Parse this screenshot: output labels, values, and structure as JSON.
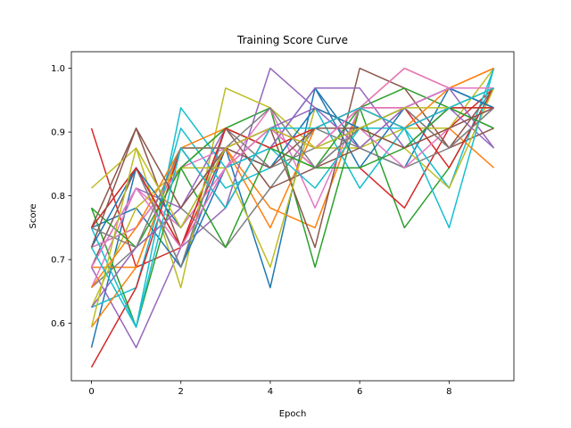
{
  "chart_data": {
    "type": "line",
    "title": "Training Score Curve",
    "xlabel": "Epoch",
    "ylabel": "Score",
    "xlim": [
      -0.45,
      9.45
    ],
    "ylim": [
      0.51,
      1.026
    ],
    "xticks": [
      0,
      2,
      4,
      6,
      8
    ],
    "yticks": [
      0.6,
      0.7,
      0.8,
      0.9,
      1.0
    ],
    "ytick_labels": [
      "0.6",
      "0.7",
      "0.8",
      "0.9",
      "1.0"
    ],
    "grid": false,
    "legend": "none",
    "x": [
      0,
      1,
      2,
      3,
      4,
      5,
      6,
      7,
      8,
      9
    ],
    "series": [
      {
        "color": "#1f77b4",
        "values": [
          0.562,
          0.844,
          0.688,
          0.875,
          0.656,
          0.969,
          0.875,
          0.844,
          0.969,
          0.938
        ]
      },
      {
        "color": "#ff7f0e",
        "values": [
          0.688,
          0.688,
          0.875,
          0.875,
          0.781,
          0.75,
          0.938,
          1.0,
          0.969,
          1.0
        ]
      },
      {
        "color": "#2ca02c",
        "values": [
          0.719,
          0.75,
          0.844,
          0.906,
          0.938,
          0.688,
          0.938,
          0.75,
          0.844,
          0.969
        ]
      },
      {
        "color": "#d62728",
        "values": [
          0.906,
          0.688,
          0.719,
          0.875,
          0.906,
          0.844,
          0.844,
          0.781,
          0.906,
          0.969
        ]
      },
      {
        "color": "#9467bd",
        "values": [
          0.688,
          0.562,
          0.719,
          0.781,
          1.0,
          0.938,
          0.906,
          0.938,
          0.969,
          0.875
        ]
      },
      {
        "color": "#8c564b",
        "values": [
          0.75,
          0.906,
          0.719,
          0.844,
          0.906,
          0.719,
          1.0,
          0.969,
          0.875,
          0.906
        ]
      },
      {
        "color": "#e377c2",
        "values": [
          0.656,
          0.812,
          0.75,
          0.844,
          0.938,
          0.781,
          0.938,
          1.0,
          0.969,
          0.969
        ]
      },
      {
        "color": "#7f7f7f",
        "values": [
          0.656,
          0.719,
          0.781,
          0.719,
          0.812,
          0.906,
          0.875,
          0.844,
          0.875,
          0.938
        ]
      },
      {
        "color": "#bcbd22",
        "values": [
          0.812,
          0.875,
          0.656,
          0.969,
          0.938,
          0.875,
          0.875,
          0.906,
          0.906,
          1.0
        ]
      },
      {
        "color": "#17becf",
        "values": [
          0.625,
          0.656,
          0.906,
          0.812,
          0.844,
          0.938,
          0.812,
          0.906,
          0.812,
          1.0
        ]
      },
      {
        "color": "#1f77b4",
        "values": [
          0.75,
          0.781,
          0.688,
          0.844,
          0.875,
          0.969,
          0.844,
          0.938,
          0.969,
          0.938
        ]
      },
      {
        "color": "#ff7f0e",
        "values": [
          0.594,
          0.688,
          0.875,
          0.875,
          0.75,
          0.906,
          0.906,
          0.875,
          0.906,
          0.844
        ]
      },
      {
        "color": "#2ca02c",
        "values": [
          0.781,
          0.594,
          0.844,
          0.719,
          0.875,
          0.844,
          0.938,
          0.969,
          0.938,
          0.938
        ]
      },
      {
        "color": "#d62728",
        "values": [
          0.531,
          0.656,
          0.875,
          0.781,
          0.906,
          0.875,
          0.938,
          0.938,
          0.844,
          0.969
        ]
      },
      {
        "color": "#9467bd",
        "values": [
          0.688,
          0.812,
          0.781,
          0.906,
          0.875,
          0.969,
          0.969,
          0.875,
          0.938,
          0.875
        ]
      },
      {
        "color": "#8c564b",
        "values": [
          0.688,
          0.844,
          0.719,
          0.906,
          0.812,
          0.844,
          0.875,
          0.938,
          0.875,
          0.969
        ]
      },
      {
        "color": "#e377c2",
        "values": [
          0.719,
          0.75,
          0.844,
          0.875,
          0.906,
          0.844,
          0.906,
          0.844,
          0.906,
          0.938
        ]
      },
      {
        "color": "#7f7f7f",
        "values": [
          0.75,
          0.844,
          0.688,
          0.906,
          0.844,
          0.875,
          0.906,
          0.875,
          0.938,
          0.906
        ]
      },
      {
        "color": "#bcbd22",
        "values": [
          0.625,
          0.781,
          0.844,
          0.844,
          0.688,
          0.938,
          0.906,
          0.875,
          0.812,
          0.969
        ]
      },
      {
        "color": "#17becf",
        "values": [
          0.75,
          0.594,
          0.938,
          0.844,
          0.875,
          0.812,
          0.906,
          0.906,
          0.75,
          1.0
        ]
      },
      {
        "color": "#1f77b4",
        "values": [
          0.719,
          0.844,
          0.75,
          0.875,
          0.844,
          0.938,
          0.906,
          0.938,
          0.969,
          0.938
        ]
      },
      {
        "color": "#ff7f0e",
        "values": [
          0.656,
          0.75,
          0.875,
          0.906,
          0.875,
          0.906,
          0.938,
          0.906,
          0.969,
          1.0
        ]
      },
      {
        "color": "#2ca02c",
        "values": [
          0.781,
          0.719,
          0.844,
          0.906,
          0.875,
          0.844,
          0.844,
          0.875,
          0.938,
          0.906
        ]
      },
      {
        "color": "#d62728",
        "values": [
          0.75,
          0.844,
          0.719,
          0.906,
          0.875,
          0.906,
          0.938,
          0.906,
          0.938,
          0.938
        ]
      },
      {
        "color": "#9467bd",
        "values": [
          0.625,
          0.719,
          0.781,
          0.875,
          0.906,
          0.938,
          0.875,
          0.938,
          0.969,
          0.969
        ]
      },
      {
        "color": "#8c564b",
        "values": [
          0.719,
          0.906,
          0.781,
          0.875,
          0.844,
          0.906,
          0.906,
          0.875,
          0.906,
          0.938
        ]
      },
      {
        "color": "#e377c2",
        "values": [
          0.688,
          0.812,
          0.719,
          0.844,
          0.906,
          0.875,
          0.938,
          0.938,
          0.969,
          0.969
        ]
      },
      {
        "color": "#7f7f7f",
        "values": [
          0.75,
          0.719,
          0.875,
          0.875,
          0.938,
          0.844,
          0.906,
          0.938,
          0.875,
          0.938
        ]
      },
      {
        "color": "#bcbd22",
        "values": [
          0.594,
          0.875,
          0.75,
          0.875,
          0.906,
          0.875,
          0.906,
          0.938,
          0.938,
          0.969
        ]
      },
      {
        "color": "#17becf",
        "values": [
          0.719,
          0.594,
          0.875,
          0.781,
          0.906,
          0.906,
          0.938,
          0.906,
          0.938,
          0.969
        ]
      }
    ]
  }
}
